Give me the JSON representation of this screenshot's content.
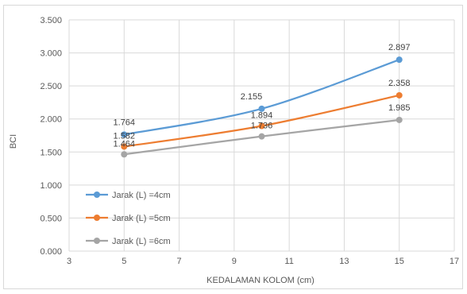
{
  "chart_data": {
    "type": "line",
    "title": "",
    "xlabel": "KEDALAMAN KOLOM (cm)",
    "ylabel": "BCI",
    "xlim": [
      3,
      17
    ],
    "ylim": [
      0,
      3.5
    ],
    "x_ticks": [
      3,
      5,
      7,
      9,
      11,
      13,
      15,
      17
    ],
    "x_tick_labels": [
      "3",
      "5",
      "7",
      "9",
      "11",
      "13",
      "15",
      "17"
    ],
    "y_ticks": [
      0,
      0.5,
      1,
      1.5,
      2,
      2.5,
      3,
      3.5
    ],
    "y_tick_labels": [
      "0.000",
      "0.500",
      "1.000",
      "1.500",
      "2.000",
      "2.500",
      "3.000",
      "3.500"
    ],
    "grid": true,
    "legend_position": "bottom-left",
    "series": [
      {
        "name": "Jarak (L) =4cm",
        "color": "#5b9bd5",
        "x": [
          5,
          10,
          15
        ],
        "values": [
          1.764,
          2.155,
          2.897
        ],
        "labels": [
          "1.764",
          "2.155",
          "2.897"
        ]
      },
      {
        "name": "Jarak (L) =5cm",
        "color": "#ed7d31",
        "x": [
          5,
          10,
          15
        ],
        "values": [
          1.582,
          1.894,
          2.358
        ],
        "labels": [
          "1.582",
          "1.894",
          "2.358"
        ]
      },
      {
        "name": "Jarak (L) =6cm",
        "color": "#a5a5a5",
        "x": [
          5,
          10,
          15
        ],
        "values": [
          1.464,
          1.736,
          1.985
        ],
        "labels": [
          "1.464",
          "1.736",
          "1.985"
        ]
      }
    ]
  }
}
